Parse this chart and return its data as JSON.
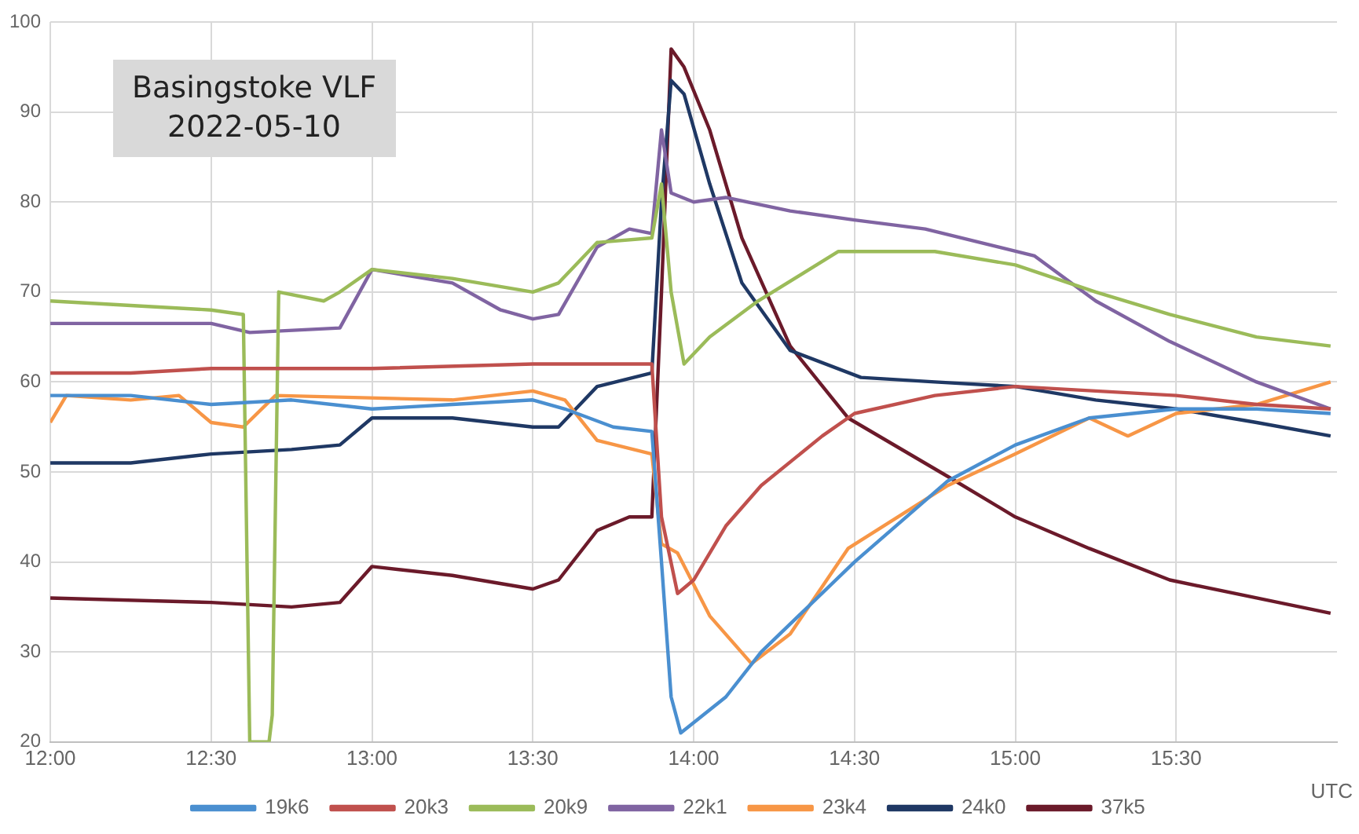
{
  "chart_data": {
    "type": "line",
    "title": "Basingstoke VLF",
    "subtitle": "2022-05-10",
    "xlabel": "UTC",
    "xlim": [
      12,
      16
    ],
    "xticks": [
      {
        "value": 12,
        "label": "12:00"
      },
      {
        "value": 12.5,
        "label": "12:30"
      },
      {
        "value": 13,
        "label": "13:00"
      },
      {
        "value": 13.5,
        "label": "13:30"
      },
      {
        "value": 14,
        "label": "14:00"
      },
      {
        "value": 14.5,
        "label": "14:30"
      },
      {
        "value": 15,
        "label": "15:00"
      },
      {
        "value": 15.5,
        "label": "15:30"
      }
    ],
    "ylim": [
      20,
      100
    ],
    "yticks": [
      20,
      30,
      40,
      50,
      60,
      70,
      80,
      90,
      100
    ],
    "grid": true,
    "legend": "bottom",
    "marker": "none",
    "line_style": "solid",
    "series": [
      {
        "name": "19k6",
        "color": "#4a8fd0",
        "x": [
          12,
          12.25,
          12.5,
          12.75,
          13,
          13.25,
          13.5,
          13.6,
          13.75,
          13.87,
          13.9,
          13.93,
          13.96,
          14.1,
          14.21,
          14.5,
          14.79,
          15,
          15.23,
          15.5,
          15.75,
          15.98
        ],
        "values": [
          58.5,
          58.5,
          57.5,
          58,
          57,
          57.5,
          58,
          57,
          55,
          54.5,
          40,
          25,
          21,
          25,
          30,
          40,
          49,
          53,
          56,
          57,
          57,
          56.5
        ]
      },
      {
        "name": "20k3",
        "color": "#c0504d",
        "x": [
          12,
          12.25,
          12.5,
          13,
          13.5,
          13.87,
          13.9,
          13.95,
          14,
          14.1,
          14.21,
          14.4,
          14.5,
          14.75,
          15,
          15.25,
          15.5,
          15.75,
          15.98
        ],
        "values": [
          61,
          61,
          61.5,
          61.5,
          62,
          62,
          45,
          36.5,
          38,
          44,
          48.5,
          54,
          56.5,
          58.5,
          59.5,
          59,
          58.5,
          57.5,
          57
        ]
      },
      {
        "name": "20k9",
        "color": "#9bbb59",
        "x": [
          12,
          12.25,
          12.5,
          12.6,
          12.62,
          12.68,
          12.69,
          12.71,
          12.85,
          12.9,
          13,
          13.25,
          13.5,
          13.58,
          13.7,
          13.87,
          13.9,
          13.93,
          13.97,
          14.05,
          14.2,
          14.45,
          14.75,
          15,
          15.25,
          15.48,
          15.75,
          15.98
        ],
        "values": [
          69,
          68.5,
          68,
          67.5,
          20,
          20,
          23,
          70,
          69,
          70,
          72.5,
          71.5,
          70,
          71,
          75.5,
          76,
          82,
          70,
          62,
          65,
          69,
          74.5,
          74.5,
          73,
          70,
          67.5,
          65,
          64
        ]
      },
      {
        "name": "22k1",
        "color": "#8064a2",
        "x": [
          12,
          12.5,
          12.62,
          12.9,
          13,
          13.25,
          13.4,
          13.5,
          13.58,
          13.7,
          13.8,
          13.87,
          13.9,
          13.93,
          14,
          14.1,
          14.3,
          14.5,
          14.72,
          15.06,
          15.25,
          15.48,
          15.75,
          15.98
        ],
        "values": [
          66.5,
          66.5,
          65.5,
          66,
          72.5,
          71,
          68,
          67,
          67.5,
          75,
          77,
          76.5,
          88,
          81,
          80,
          80.5,
          79,
          78,
          77,
          74,
          69,
          64.5,
          60,
          57
        ]
      },
      {
        "name": "23k4",
        "color": "#f79646",
        "x": [
          12,
          12.05,
          12.25,
          12.4,
          12.5,
          12.6,
          12.7,
          13.25,
          13.5,
          13.6,
          13.7,
          13.87,
          13.9,
          13.95,
          14.05,
          14.18,
          14.3,
          14.48,
          14.79,
          15,
          15.23,
          15.35,
          15.5,
          15.75,
          15.98
        ],
        "values": [
          55.5,
          58.5,
          58,
          58.5,
          55.5,
          55,
          58.5,
          58,
          59,
          58,
          53.5,
          52,
          42,
          41,
          34,
          28.7,
          32,
          41.5,
          48.5,
          52,
          56,
          54,
          56.5,
          57.5,
          60
        ]
      },
      {
        "name": "24k0",
        "color": "#1f3864",
        "x": [
          12,
          12.25,
          12.5,
          12.75,
          12.9,
          13,
          13.25,
          13.5,
          13.58,
          13.7,
          13.87,
          13.9,
          13.93,
          13.97,
          14.05,
          14.15,
          14.3,
          14.52,
          14.75,
          15,
          15.25,
          15.5,
          15.75,
          15.98
        ],
        "values": [
          51,
          51,
          52,
          52.5,
          53,
          56,
          56,
          55,
          55,
          59.5,
          61,
          80,
          93.5,
          92,
          82,
          71,
          63.5,
          60.5,
          60,
          59.5,
          58,
          57,
          55.5,
          54
        ]
      },
      {
        "name": "37k5",
        "color": "#6b1a2a",
        "x": [
          12,
          12.5,
          12.75,
          12.9,
          13,
          13.25,
          13.5,
          13.58,
          13.7,
          13.8,
          13.87,
          13.9,
          13.93,
          13.97,
          14.05,
          14.15,
          14.3,
          14.48,
          14.79,
          15,
          15.23,
          15.48,
          15.75,
          15.98
        ],
        "values": [
          36,
          35.5,
          35,
          35.5,
          39.5,
          38.5,
          37,
          38,
          43.5,
          45,
          45,
          70,
          97,
          95,
          88,
          76,
          64,
          56,
          49.5,
          45,
          41.5,
          38,
          36,
          34.3
        ]
      }
    ]
  }
}
